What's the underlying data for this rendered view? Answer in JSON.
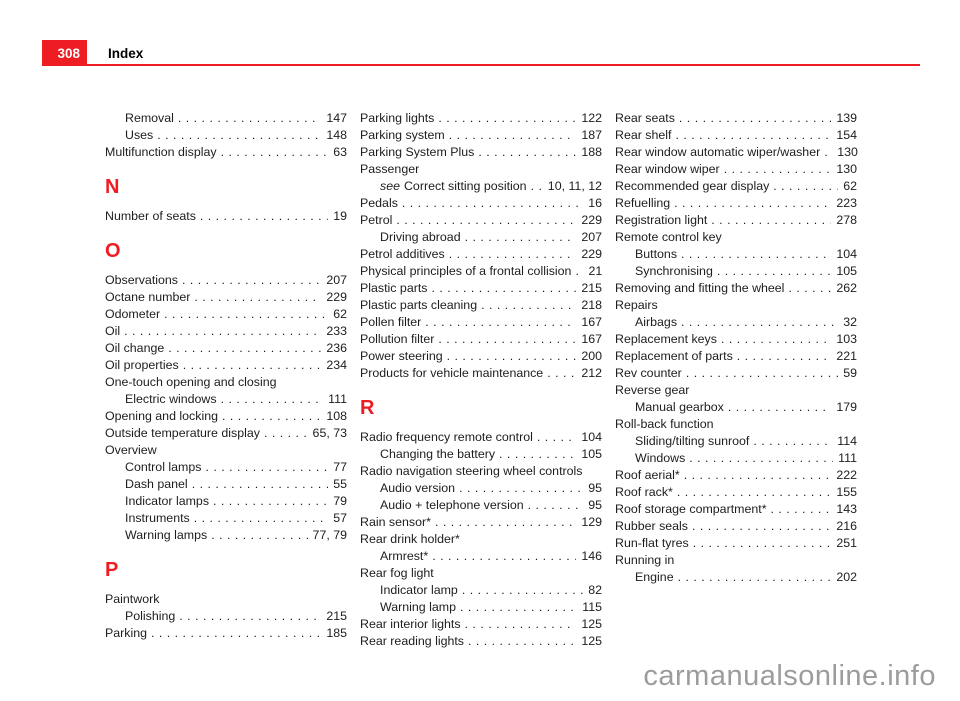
{
  "header": {
    "page_number": "308",
    "title": "Index"
  },
  "watermark": "carmanualsonline.info",
  "colors": {
    "accent": "#ee1c23",
    "text": "#1d1d1b",
    "watermark": "#9c9c9c"
  },
  "columns": [
    {
      "items": [
        {
          "type": "entry",
          "indent": 1,
          "label": "Removal",
          "pages": "147"
        },
        {
          "type": "entry",
          "indent": 1,
          "label": "Uses",
          "pages": "148"
        },
        {
          "type": "entry",
          "indent": 0,
          "label": "Multifunction display",
          "pages": "63"
        },
        {
          "type": "section",
          "letter": "N"
        },
        {
          "type": "entry",
          "indent": 0,
          "label": "Number of seats",
          "pages": "19"
        },
        {
          "type": "section",
          "letter": "O"
        },
        {
          "type": "entry",
          "indent": 0,
          "label": "Observations",
          "pages": "207"
        },
        {
          "type": "entry",
          "indent": 0,
          "label": "Octane number",
          "pages": "229"
        },
        {
          "type": "entry",
          "indent": 0,
          "label": "Odometer",
          "pages": "62"
        },
        {
          "type": "entry",
          "indent": 0,
          "label": "Oil",
          "pages": "233"
        },
        {
          "type": "entry",
          "indent": 0,
          "label": "Oil change",
          "pages": "236"
        },
        {
          "type": "entry",
          "indent": 0,
          "label": "Oil properties",
          "pages": "234"
        },
        {
          "type": "entry",
          "indent": 0,
          "label": "One-touch opening and closing",
          "pages": null
        },
        {
          "type": "entry",
          "indent": 1,
          "label": "Electric windows",
          "pages": "111"
        },
        {
          "type": "entry",
          "indent": 0,
          "label": "Opening and locking",
          "pages": "108"
        },
        {
          "type": "entry",
          "indent": 0,
          "label": "Outside temperature display",
          "pages": "65, 73"
        },
        {
          "type": "entry",
          "indent": 0,
          "label": "Overview",
          "pages": null
        },
        {
          "type": "entry",
          "indent": 1,
          "label": "Control lamps",
          "pages": "77"
        },
        {
          "type": "entry",
          "indent": 1,
          "label": "Dash panel",
          "pages": "55"
        },
        {
          "type": "entry",
          "indent": 1,
          "label": "Indicator lamps",
          "pages": "79"
        },
        {
          "type": "entry",
          "indent": 1,
          "label": "Instruments",
          "pages": "57"
        },
        {
          "type": "entry",
          "indent": 1,
          "label": "Warning lamps",
          "pages": "77, 79"
        },
        {
          "type": "section",
          "letter": "P"
        },
        {
          "type": "entry",
          "indent": 0,
          "label": "Paintwork",
          "pages": null
        },
        {
          "type": "entry",
          "indent": 1,
          "label": "Polishing",
          "pages": "215"
        },
        {
          "type": "entry",
          "indent": 0,
          "label": "Parking",
          "pages": "185"
        }
      ]
    },
    {
      "items": [
        {
          "type": "entry",
          "indent": 0,
          "label": "Parking lights",
          "pages": "122"
        },
        {
          "type": "entry",
          "indent": 0,
          "label": "Parking system",
          "pages": "187"
        },
        {
          "type": "entry",
          "indent": 0,
          "label": "Parking System Plus",
          "pages": "188"
        },
        {
          "type": "entry",
          "indent": 0,
          "label": "Passenger",
          "pages": null
        },
        {
          "type": "entry",
          "indent": 1,
          "prefix": "see",
          "label": "Correct sitting position",
          "pages": "10, 11, 12"
        },
        {
          "type": "entry",
          "indent": 0,
          "label": "Pedals",
          "pages": "16"
        },
        {
          "type": "entry",
          "indent": 0,
          "label": "Petrol",
          "pages": "229"
        },
        {
          "type": "entry",
          "indent": 1,
          "label": "Driving abroad",
          "pages": "207"
        },
        {
          "type": "entry",
          "indent": 0,
          "label": "Petrol additives",
          "pages": "229"
        },
        {
          "type": "entry",
          "indent": 0,
          "label": "Physical principles of a frontal collision",
          "pages": "21"
        },
        {
          "type": "entry",
          "indent": 0,
          "label": "Plastic parts",
          "pages": "215"
        },
        {
          "type": "entry",
          "indent": 0,
          "label": "Plastic parts cleaning",
          "pages": "218"
        },
        {
          "type": "entry",
          "indent": 0,
          "label": "Pollen filter",
          "pages": "167"
        },
        {
          "type": "entry",
          "indent": 0,
          "label": "Pollution filter",
          "pages": "167"
        },
        {
          "type": "entry",
          "indent": 0,
          "label": "Power steering",
          "pages": "200"
        },
        {
          "type": "entry",
          "indent": 0,
          "label": "Products for vehicle maintenance",
          "pages": "212"
        },
        {
          "type": "section",
          "letter": "R"
        },
        {
          "type": "entry",
          "indent": 0,
          "label": "Radio frequency remote control",
          "pages": "104"
        },
        {
          "type": "entry",
          "indent": 1,
          "label": "Changing the battery",
          "pages": "105"
        },
        {
          "type": "entry",
          "indent": 0,
          "label": "Radio navigation steering wheel controls",
          "pages": null
        },
        {
          "type": "entry",
          "indent": 1,
          "label": "Audio version",
          "pages": "95"
        },
        {
          "type": "entry",
          "indent": 1,
          "label": "Audio + telephone version",
          "pages": "95"
        },
        {
          "type": "entry",
          "indent": 0,
          "label": "Rain sensor*",
          "pages": "129"
        },
        {
          "type": "entry",
          "indent": 0,
          "label": "Rear drink holder*",
          "pages": null
        },
        {
          "type": "entry",
          "indent": 1,
          "label": "Armrest*",
          "pages": "146"
        },
        {
          "type": "entry",
          "indent": 0,
          "label": "Rear fog light",
          "pages": null
        },
        {
          "type": "entry",
          "indent": 1,
          "label": "Indicator lamp",
          "pages": "82"
        },
        {
          "type": "entry",
          "indent": 1,
          "label": "Warning lamp",
          "pages": "115"
        },
        {
          "type": "entry",
          "indent": 0,
          "label": "Rear interior lights",
          "pages": "125"
        },
        {
          "type": "entry",
          "indent": 0,
          "label": "Rear reading lights",
          "pages": "125"
        }
      ]
    },
    {
      "items": [
        {
          "type": "entry",
          "indent": 0,
          "label": "Rear seats",
          "pages": "139"
        },
        {
          "type": "entry",
          "indent": 0,
          "label": "Rear shelf",
          "pages": "154"
        },
        {
          "type": "entry",
          "indent": 0,
          "label": "Rear window automatic wiper/washer",
          "pages": "130"
        },
        {
          "type": "entry",
          "indent": 0,
          "label": "Rear window wiper",
          "pages": "130"
        },
        {
          "type": "entry",
          "indent": 0,
          "label": "Recommended gear display",
          "pages": "62"
        },
        {
          "type": "entry",
          "indent": 0,
          "label": "Refuelling",
          "pages": "223"
        },
        {
          "type": "entry",
          "indent": 0,
          "label": "Registration light",
          "pages": "278"
        },
        {
          "type": "entry",
          "indent": 0,
          "label": "Remote control key",
          "pages": null
        },
        {
          "type": "entry",
          "indent": 1,
          "label": "Buttons",
          "pages": "104"
        },
        {
          "type": "entry",
          "indent": 1,
          "label": "Synchronising",
          "pages": "105"
        },
        {
          "type": "entry",
          "indent": 0,
          "label": "Removing and fitting the wheel",
          "pages": "262"
        },
        {
          "type": "entry",
          "indent": 0,
          "label": "Repairs",
          "pages": null
        },
        {
          "type": "entry",
          "indent": 1,
          "label": "Airbags",
          "pages": "32"
        },
        {
          "type": "entry",
          "indent": 0,
          "label": "Replacement keys",
          "pages": "103"
        },
        {
          "type": "entry",
          "indent": 0,
          "label": "Replacement of parts",
          "pages": "221"
        },
        {
          "type": "entry",
          "indent": 0,
          "label": "Rev counter",
          "pages": "59"
        },
        {
          "type": "entry",
          "indent": 0,
          "label": "Reverse gear",
          "pages": null
        },
        {
          "type": "entry",
          "indent": 1,
          "label": "Manual gearbox",
          "pages": "179"
        },
        {
          "type": "entry",
          "indent": 0,
          "label": "Roll-back function",
          "pages": null
        },
        {
          "type": "entry",
          "indent": 1,
          "label": "Sliding/tilting sunroof",
          "pages": "114"
        },
        {
          "type": "entry",
          "indent": 1,
          "label": "Windows",
          "pages": "111"
        },
        {
          "type": "entry",
          "indent": 0,
          "label": "Roof aerial*",
          "pages": "222"
        },
        {
          "type": "entry",
          "indent": 0,
          "label": "Roof rack*",
          "pages": "155"
        },
        {
          "type": "entry",
          "indent": 0,
          "label": "Roof storage compartment*",
          "pages": "143"
        },
        {
          "type": "entry",
          "indent": 0,
          "label": "Rubber seals",
          "pages": "216"
        },
        {
          "type": "entry",
          "indent": 0,
          "label": "Run-flat tyres",
          "pages": "251"
        },
        {
          "type": "entry",
          "indent": 0,
          "label": "Running in",
          "pages": null
        },
        {
          "type": "entry",
          "indent": 1,
          "label": "Engine",
          "pages": "202"
        }
      ]
    }
  ]
}
